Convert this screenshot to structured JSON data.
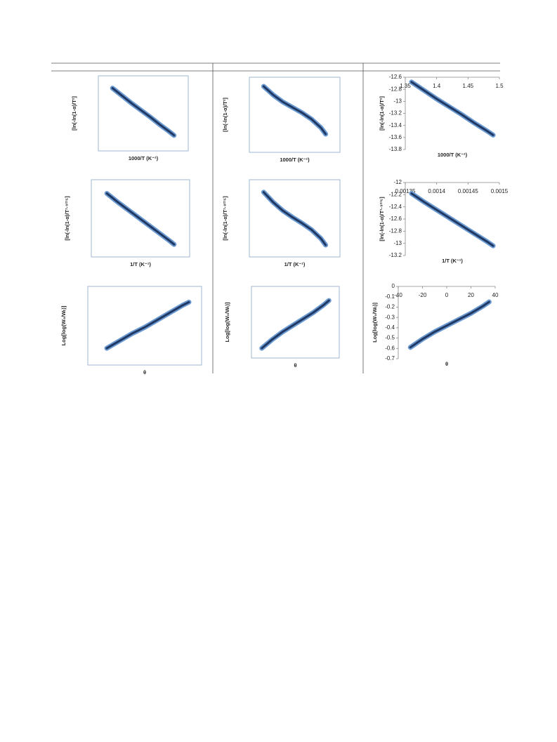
{
  "chart_data": [
    {
      "type": "line",
      "x_label": "1000/T (K⁻¹)",
      "y_label": "[ln(-ln(1-α)/T²]",
      "frame": true,
      "color": "#1f3864",
      "x": [
        1.36,
        1.38,
        1.4,
        1.42,
        1.44,
        1.46,
        1.48,
        1.49
      ],
      "values": [
        -12.68,
        -12.82,
        -12.96,
        -13.09,
        -13.22,
        -13.36,
        -13.49,
        -13.56
      ],
      "xlim": [
        1.33,
        1.52
      ],
      "ylim": [
        -13.85,
        -12.45
      ]
    },
    {
      "type": "line",
      "x_label": "1000/T (K⁻¹)",
      "y_label": "[ln(-ln(1-α)/T²]",
      "frame": true,
      "color": "#1f3864",
      "x": [
        1.36,
        1.38,
        1.4,
        1.42,
        1.44,
        1.46,
        1.48,
        1.49
      ],
      "values": [
        -12.62,
        -12.78,
        -12.91,
        -13.01,
        -13.11,
        -13.23,
        -13.39,
        -13.51
      ],
      "xlim": [
        1.33,
        1.52
      ],
      "ylim": [
        -13.85,
        -12.45
      ]
    },
    {
      "type": "line",
      "x_label": "1000/T (K⁻¹)",
      "y_label": "[ln(-ln(1-α)/T²]",
      "frame": false,
      "color": "#1f3864",
      "x": [
        1.36,
        1.38,
        1.4,
        1.42,
        1.44,
        1.46,
        1.48,
        1.49
      ],
      "values": [
        -12.68,
        -12.82,
        -12.96,
        -13.09,
        -13.22,
        -13.36,
        -13.49,
        -13.56
      ],
      "xlim": [
        1.35,
        1.5
      ],
      "xticks": [
        1.35,
        1.4,
        1.45,
        1.5
      ],
      "ylim": [
        -13.8,
        -12.6
      ],
      "yticks": [
        -12.6,
        -12.8,
        -13,
        -13.2,
        -13.4,
        -13.6,
        -13.8
      ]
    },
    {
      "type": "line",
      "x_label": "1/T (K⁻¹)",
      "y_label": "[ln(-ln(1-α)/T¹·⁹²¹⁵]",
      "frame": true,
      "color": "#1f3864",
      "x": [
        0.00136,
        0.00138,
        0.0014,
        0.00142,
        0.00144,
        0.00146,
        0.00148,
        0.00149
      ],
      "values": [
        -12.18,
        -12.32,
        -12.45,
        -12.58,
        -12.71,
        -12.84,
        -12.97,
        -13.04
      ],
      "xlim": [
        0.00133,
        0.00152
      ],
      "ylim": [
        -13.25,
        -11.95
      ]
    },
    {
      "type": "line",
      "x_label": "1/T (K⁻¹)",
      "y_label": "[ln(-ln(1-α)/T¹·⁸²¹⁵]",
      "frame": true,
      "color": "#1f3864",
      "x": [
        0.00136,
        0.00138,
        0.0014,
        0.00142,
        0.00144,
        0.00146,
        0.00148,
        0.00149
      ],
      "values": [
        -12.16,
        -12.33,
        -12.47,
        -12.58,
        -12.68,
        -12.79,
        -12.94,
        -13.05
      ],
      "xlim": [
        0.00133,
        0.00152
      ],
      "ylim": [
        -13.25,
        -11.95
      ]
    },
    {
      "type": "line",
      "x_label": "1/T (K⁻¹)",
      "y_label": "[ln(-ln(1-α)/T¹·⁹²¹⁵]",
      "frame": false,
      "color": "#1f3864",
      "x": [
        0.00136,
        0.00138,
        0.0014,
        0.00142,
        0.00144,
        0.00146,
        0.00148,
        0.00149
      ],
      "values": [
        -12.18,
        -12.32,
        -12.45,
        -12.58,
        -12.71,
        -12.84,
        -12.97,
        -13.04
      ],
      "xlim": [
        0.00135,
        0.0015
      ],
      "xticks": [
        0.00135,
        0.0014,
        0.00145,
        0.0015
      ],
      "ylim": [
        -13.2,
        -12
      ],
      "yticks": [
        -12,
        -12.2,
        -12.4,
        -12.6,
        -12.8,
        -13,
        -13.2
      ]
    },
    {
      "type": "line",
      "x_label": "θ",
      "y_label": "Log[log(W₀/Wₜ)]",
      "frame": true,
      "color": "#1f3864",
      "x": [
        -30,
        -20,
        -10,
        0,
        10,
        20,
        30,
        35
      ],
      "values": [
        -0.59,
        -0.52,
        -0.45,
        -0.39,
        -0.32,
        -0.25,
        -0.18,
        -0.15
      ],
      "xlim": [
        -45,
        45
      ],
      "ylim": [
        -0.75,
        0
      ]
    },
    {
      "type": "line",
      "x_label": "θ",
      "y_label": "Log[log(W₀/Wₜ)]",
      "frame": true,
      "color": "#1f3864",
      "x": [
        -30,
        -20,
        -10,
        0,
        10,
        20,
        30,
        35
      ],
      "values": [
        -0.59,
        -0.51,
        -0.44,
        -0.38,
        -0.32,
        -0.26,
        -0.19,
        -0.15
      ],
      "xlim": [
        -40,
        45
      ],
      "ylim": [
        -0.68,
        -0.02
      ]
    },
    {
      "type": "line",
      "x_label": "θ",
      "y_label": "Log[log(W₀/Wₜ)]",
      "frame": false,
      "color": "#1f3864",
      "x": [
        -30,
        -20,
        -10,
        0,
        10,
        20,
        30,
        35
      ],
      "values": [
        -0.59,
        -0.51,
        -0.44,
        -0.38,
        -0.32,
        -0.26,
        -0.19,
        -0.15
      ],
      "xlim": [
        -40,
        40
      ],
      "xticks": [
        -40,
        -20,
        0,
        20,
        40
      ],
      "ylim": [
        -0.7,
        0
      ],
      "yticks": [
        0,
        -0.1,
        -0.2,
        -0.3,
        -0.4,
        -0.5,
        -0.6,
        -0.7
      ]
    }
  ]
}
